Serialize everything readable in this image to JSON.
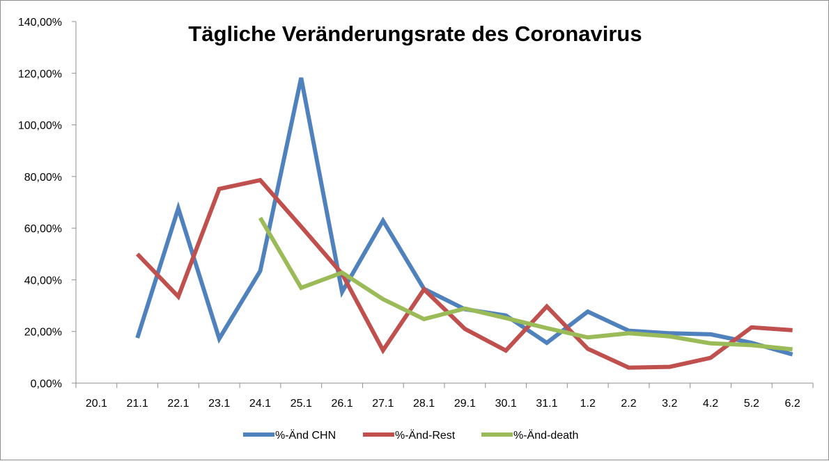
{
  "chart_data": {
    "type": "line",
    "title": "Tägliche Veränderungsrate des Coronavirus",
    "xlabel": "",
    "ylabel": "",
    "categories": [
      "20.1",
      "21.1",
      "22.1",
      "23.1",
      "24.1",
      "25.1",
      "26.1",
      "27.1",
      "28.1",
      "29.1",
      "30.1",
      "31.1",
      "1.2",
      "2.2",
      "3.2",
      "4.2",
      "5.2",
      "6.2"
    ],
    "y_ticks": [
      "0,00%",
      "20,00%",
      "40,00%",
      "60,00%",
      "80,00%",
      "100,00%",
      "120,00%",
      "140,00%"
    ],
    "ylim": [
      0,
      140
    ],
    "grid": false,
    "legend_position": "bottom",
    "series": [
      {
        "name": "%-Änd CHN",
        "color": "#4f81bd",
        "values": [
          null,
          17.5,
          67.7,
          17.2,
          43.4,
          118.2,
          35.3,
          62.9,
          36.5,
          28.6,
          26.2,
          15.6,
          27.7,
          20.3,
          19.3,
          18.9,
          15.6,
          11.1
        ]
      },
      {
        "name": "%-Änd-Rest",
        "color": "#c0504d",
        "values": [
          null,
          50.0,
          33.5,
          75.2,
          78.6,
          60.6,
          42.3,
          12.7,
          36.3,
          21.0,
          12.6,
          29.7,
          13.3,
          6.0,
          6.3,
          9.8,
          21.6,
          20.5
        ]
      },
      {
        "name": "%-Änd-death",
        "color": "#9bbb59",
        "values": [
          null,
          null,
          null,
          null,
          64.0,
          36.9,
          42.8,
          32.5,
          24.8,
          28.9,
          25.2,
          21.3,
          17.7,
          19.3,
          18.1,
          15.4,
          14.7,
          13.1
        ]
      }
    ]
  }
}
